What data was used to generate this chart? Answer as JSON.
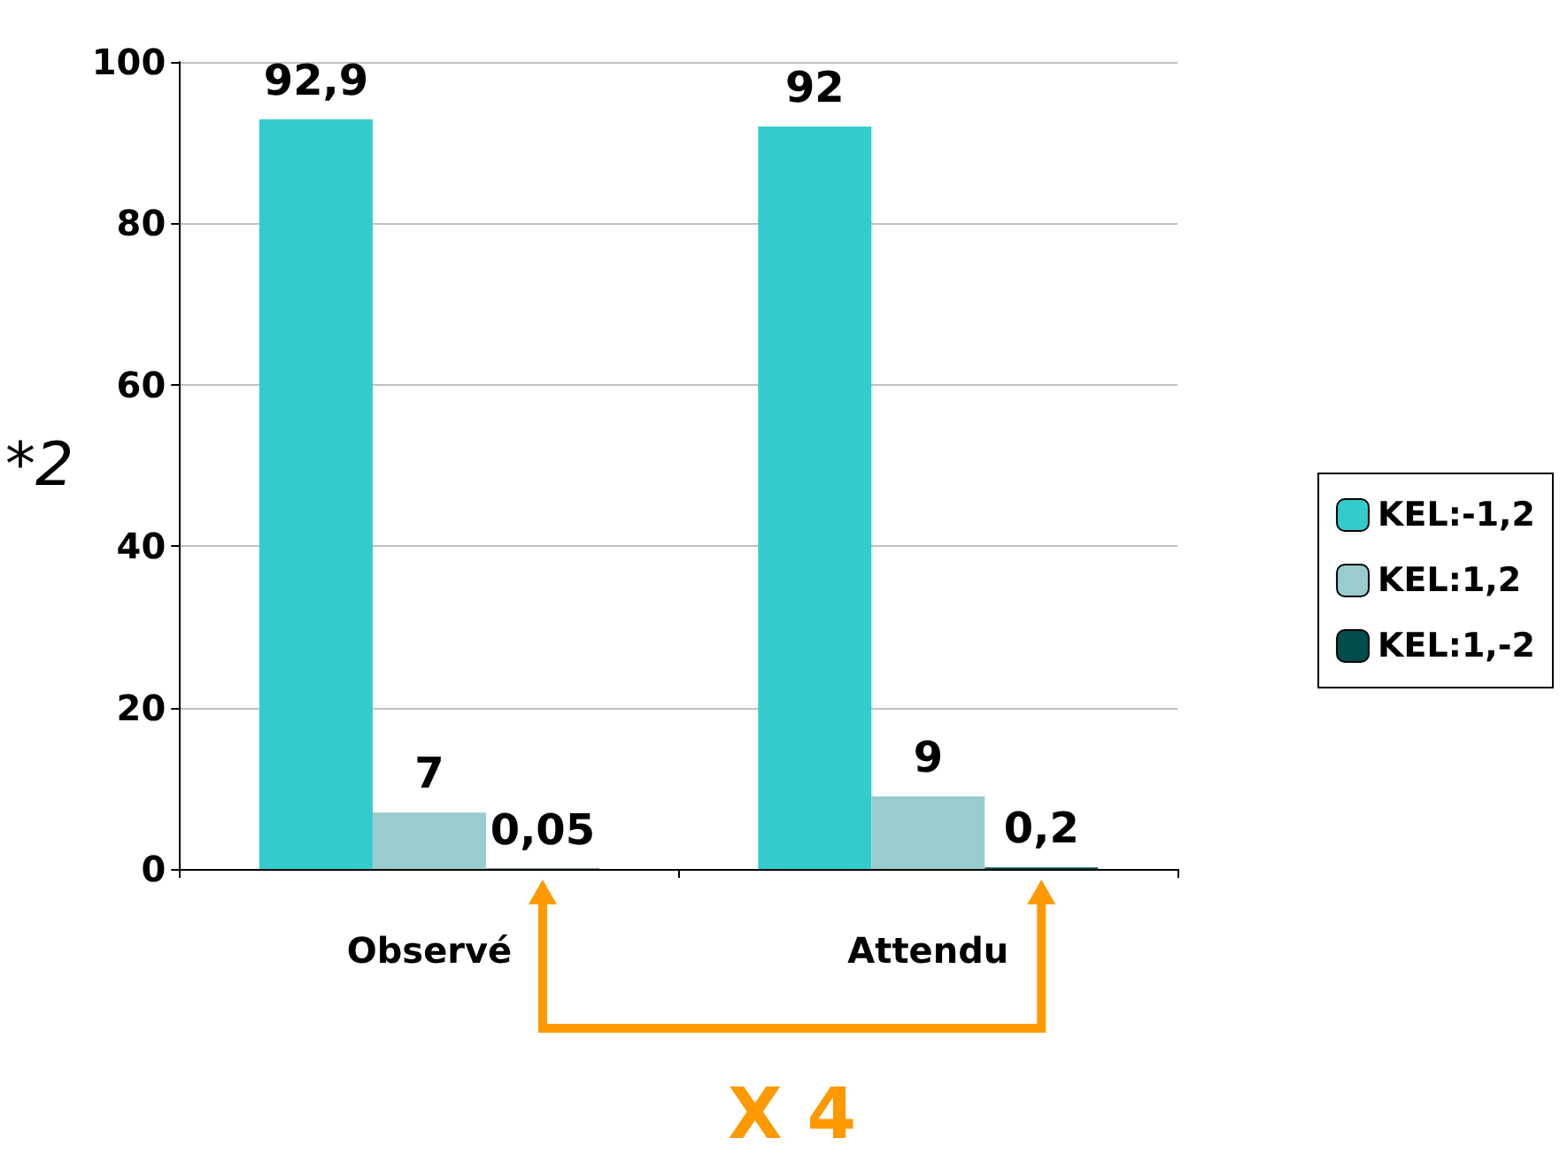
{
  "chart_data": {
    "type": "bar",
    "ylabel": "*2",
    "categories": [
      "Observé",
      "Attendu"
    ],
    "series": [
      {
        "name": "KEL:-1,2",
        "color": "#33cccc",
        "values": [
          92.9,
          92
        ],
        "value_labels": [
          "92,9",
          "92"
        ]
      },
      {
        "name": "KEL:1,2",
        "color": "#99cccc",
        "values": [
          7,
          9
        ],
        "value_labels": [
          "7",
          "9"
        ]
      },
      {
        "name": "KEL:1,-2",
        "color": "#004d4d",
        "values": [
          0.05,
          0.2
        ],
        "value_labels": [
          "0,05",
          "0,2"
        ]
      }
    ],
    "ylim": [
      0,
      100
    ],
    "yticks": [
      0,
      20,
      40,
      60,
      80,
      100
    ],
    "grid": "y",
    "legend": "right",
    "annotations": [
      "X 4"
    ]
  }
}
